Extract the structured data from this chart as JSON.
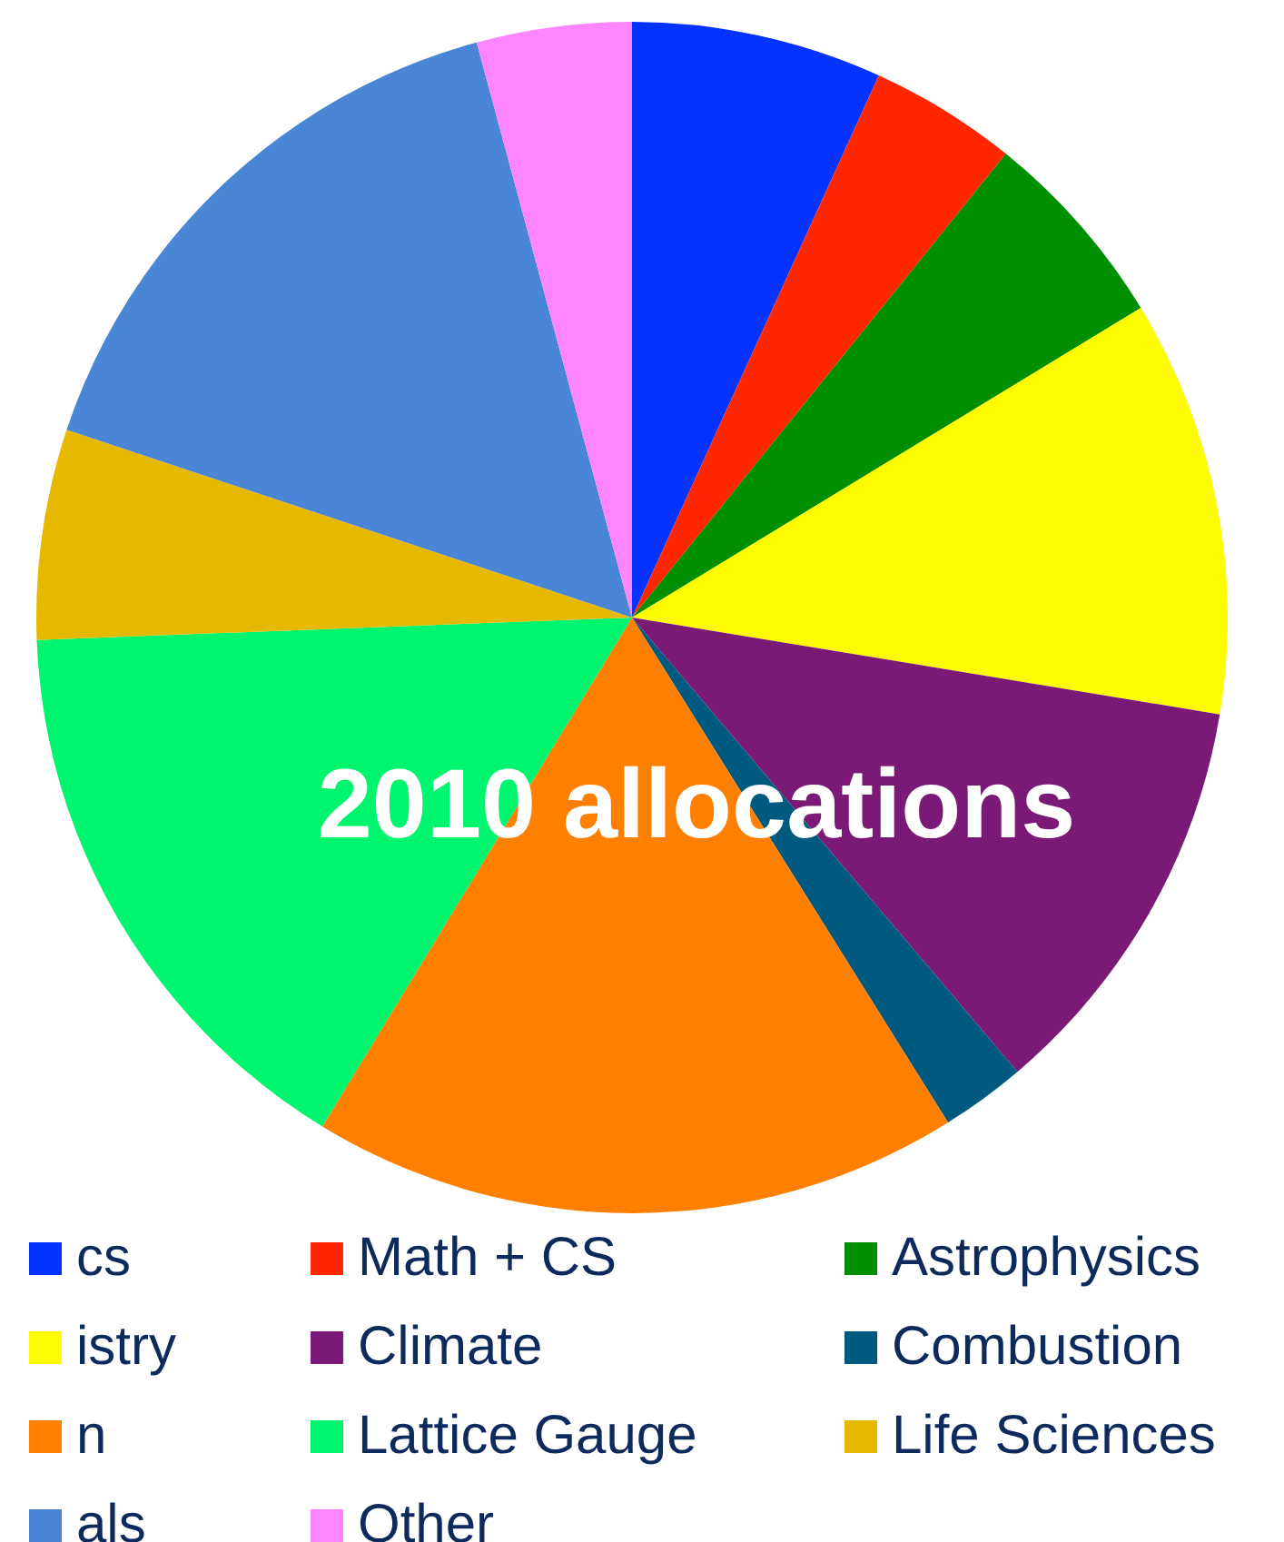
{
  "chart_data": {
    "type": "pie",
    "title": "2010 allocations",
    "categories": [
      "cs",
      "Math + CS",
      "Astrophysics",
      "istry",
      "Climate",
      "Combustion",
      "n",
      "Lattice Gauge",
      "Life Sciences",
      "als",
      "Other"
    ],
    "values": [
      6.8,
      4.0,
      5.5,
      11.3,
      11.2,
      2.3,
      17.6,
      15.7,
      5.7,
      15.7,
      4.2
    ],
    "colors": [
      "#0433ff",
      "#ff2600",
      "#008f00",
      "#fffb00",
      "#7a1a76",
      "#005a80",
      "#ff7f00",
      "#00f56e",
      "#e6b800",
      "#4a86d6",
      "#ff85ff"
    ],
    "legend": "bottom"
  }
}
